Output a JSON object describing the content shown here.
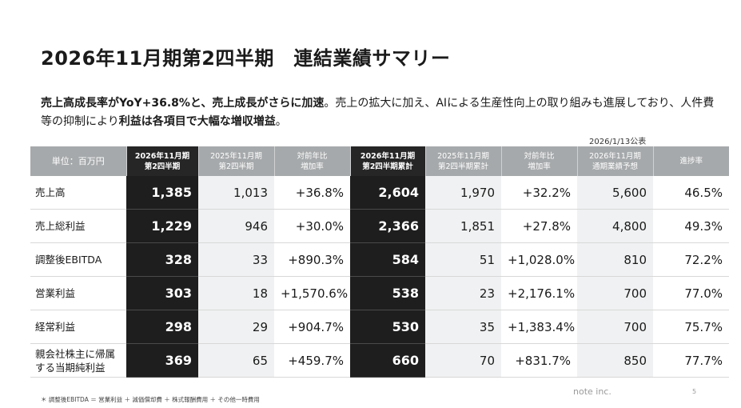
{
  "title": "2026年11月期第2四半期　連結業績サマリー",
  "summary": {
    "part1_bold": "売上高成長率がYoY+36.8%と、売上成長がさらに加速",
    "part2": "。売上の拡大に加え、AIによる生産性向上の取り組みも進展しており、人件費等の抑制により",
    "part3_bold": "利益は各項目で大幅な増収増益",
    "part4": "。"
  },
  "announcement_note": "2026/1/13公表",
  "table": {
    "headers": [
      {
        "line1": "単位：百万円",
        "line2": ""
      },
      {
        "line1": "2026年11月期",
        "line2": "第2四半期"
      },
      {
        "line1": "2025年11月期",
        "line2": "第2四半期"
      },
      {
        "line1": "対前年比",
        "line2": "増加率"
      },
      {
        "line1": "2026年11月期",
        "line2": "第2四半期累計"
      },
      {
        "line1": "2025年11月期",
        "line2": "第2四半期累計"
      },
      {
        "line1": "対前年比",
        "line2": "増加率"
      },
      {
        "line1": "2026年11月期",
        "line2": "通期業績予想"
      },
      {
        "line1": "進捗率",
        "line2": ""
      }
    ],
    "rows": [
      {
        "label1": "売上高",
        "label2": "",
        "q2": "1,385",
        "q2_prev": "1,013",
        "q2_yoy": "+36.8%",
        "cum": "2,604",
        "cum_prev": "1,970",
        "cum_yoy": "+32.2%",
        "forecast": "5,600",
        "progress": "46.5%"
      },
      {
        "label1": "売上総利益",
        "label2": "",
        "q2": "1,229",
        "q2_prev": "946",
        "q2_yoy": "+30.0%",
        "cum": "2,366",
        "cum_prev": "1,851",
        "cum_yoy": "+27.8%",
        "forecast": "4,800",
        "progress": "49.3%"
      },
      {
        "label1": "調整後EBITDA",
        "label2": "",
        "q2": "328",
        "q2_prev": "33",
        "q2_yoy": "+890.3%",
        "cum": "584",
        "cum_prev": "51",
        "cum_yoy": "+1,028.0%",
        "forecast": "810",
        "progress": "72.2%"
      },
      {
        "label1": "営業利益",
        "label2": "",
        "q2": "303",
        "q2_prev": "18",
        "q2_yoy": "+1,570.6%",
        "cum": "538",
        "cum_prev": "23",
        "cum_yoy": "+2,176.1%",
        "forecast": "700",
        "progress": "77.0%"
      },
      {
        "label1": "経常利益",
        "label2": "",
        "q2": "298",
        "q2_prev": "29",
        "q2_yoy": "+904.7%",
        "cum": "530",
        "cum_prev": "35",
        "cum_yoy": "+1,383.4%",
        "forecast": "700",
        "progress": "75.7%"
      },
      {
        "label1": "親会社株主に帰属",
        "label2": "する当期純利益",
        "q2": "369",
        "q2_prev": "65",
        "q2_yoy": "+459.7%",
        "cum": "660",
        "cum_prev": "70",
        "cum_yoy": "+831.7%",
        "forecast": "850",
        "progress": "77.7%"
      }
    ]
  },
  "footnote": "＊ 調整後EBITDA ＝ 営業利益 ＋ 減価償却費 ＋ 株式報酬費用 ＋ その他一時費用",
  "company": "note inc.",
  "page_number": "5",
  "colors": {
    "header_gray": "#a6a9ab",
    "highlight_dark": "#1e1e1e",
    "shade": "#f0f1f2"
  }
}
